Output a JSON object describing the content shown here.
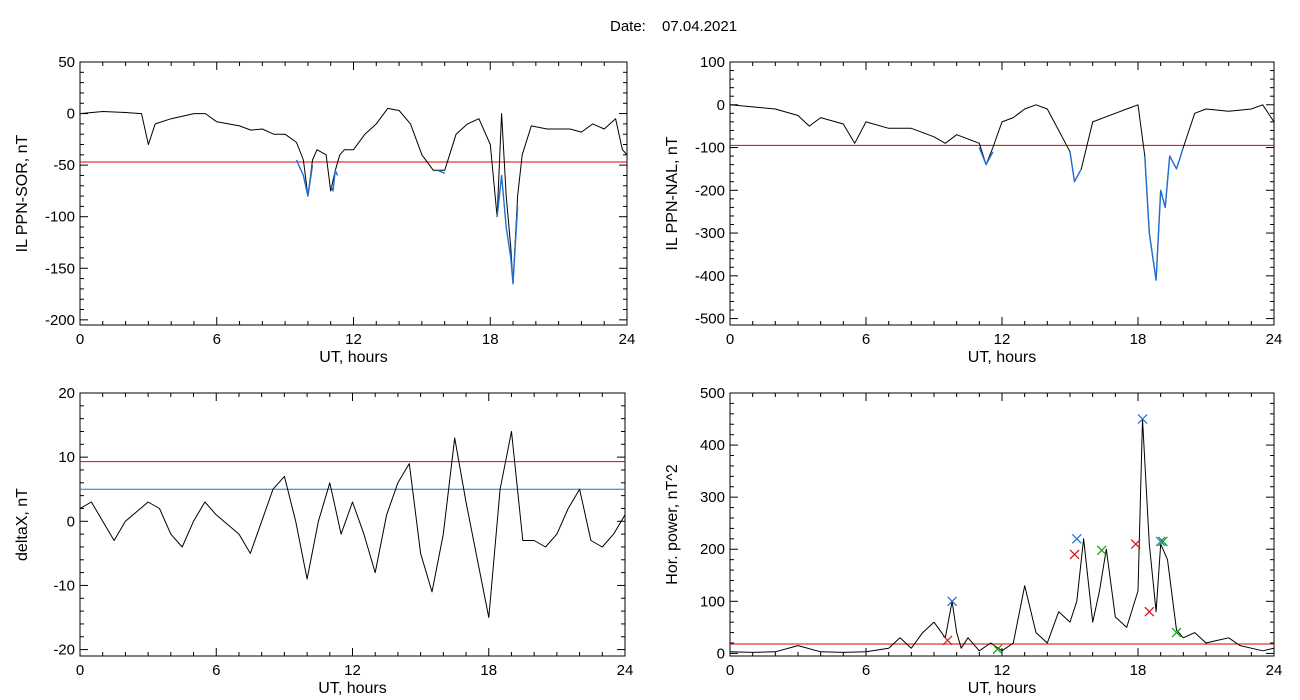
{
  "header": {
    "date_label": "Date:",
    "date_value": "07.04.2021"
  },
  "colors": {
    "trace": "#000000",
    "threshold_red": "#e00000",
    "threshold_blue": "#1f6fd0",
    "marker_red": "#d01010",
    "marker_blue": "#1f6fd0",
    "marker_green": "#10a010"
  },
  "chart_data": [
    {
      "type": "line",
      "ylabel": "IL PPN-SOR, nT",
      "xlabel": "UT, hours",
      "xlim": [
        0,
        24
      ],
      "ylim": [
        -205,
        50
      ],
      "xticks": [
        0,
        6,
        12,
        18,
        24
      ],
      "yticks": [
        50,
        0,
        -50,
        -100,
        -150,
        -200
      ],
      "grid": false,
      "series": [
        {
          "color": "black",
          "x": [
            0,
            1,
            2,
            2.7,
            3.0,
            3.3,
            4,
            5,
            5.5,
            6,
            7,
            7.5,
            8,
            8.5,
            9,
            9.5,
            9.8,
            10.0,
            10.2,
            10.4,
            10.8,
            11.0,
            11.2,
            11.4,
            11.6,
            12,
            12.5,
            13,
            13.5,
            14,
            14.5,
            15,
            15.5,
            16,
            16.5,
            17,
            17.5,
            18,
            18.3,
            18.5,
            18.7,
            18.9,
            19.0,
            19.2,
            19.4,
            19.8,
            20.5,
            21,
            21.5,
            22,
            22.5,
            23,
            23.5,
            23.8,
            24
          ],
          "y": [
            0,
            2,
            1,
            0,
            -30,
            -10,
            -5,
            0,
            0,
            -8,
            -12,
            -16,
            -15,
            -20,
            -20,
            -28,
            -45,
            -80,
            -45,
            -35,
            -40,
            -75,
            -55,
            -40,
            -35,
            -35,
            -20,
            -10,
            5,
            3,
            -10,
            -40,
            -55,
            -55,
            -20,
            -10,
            -5,
            -30,
            -100,
            0,
            -80,
            -130,
            -165,
            -80,
            -40,
            -12,
            -15,
            -15,
            -15,
            -18,
            -10,
            -15,
            -5,
            -35,
            -40
          ]
        },
        {
          "color": "blue",
          "x": [
            9.5,
            9.8,
            10.0,
            10.2
          ],
          "y": [
            -45,
            -60,
            -80,
            -50
          ]
        },
        {
          "color": "blue",
          "x": [
            11.0,
            11.1,
            11.2,
            11.3
          ],
          "y": [
            -70,
            -75,
            -55,
            -60
          ]
        },
        {
          "color": "blue",
          "x": [
            15.7,
            16.0
          ],
          "y": [
            -55,
            -58
          ]
        },
        {
          "color": "blue",
          "x": [
            18.3,
            18.5,
            18.7,
            18.9,
            19.0,
            19.2
          ],
          "y": [
            -100,
            -60,
            -110,
            -140,
            -165,
            -90
          ]
        }
      ],
      "hlines": [
        {
          "y": -47,
          "color": "red"
        }
      ]
    },
    {
      "type": "line",
      "ylabel": "IL PPN-NAL, nT",
      "xlabel": "UT, hours",
      "xlim": [
        0,
        24
      ],
      "ylim": [
        -515,
        100
      ],
      "xticks": [
        0,
        6,
        12,
        18,
        24
      ],
      "yticks": [
        100,
        0,
        -100,
        -200,
        -300,
        -400,
        -500
      ],
      "grid": false,
      "series": [
        {
          "color": "black",
          "x": [
            0,
            1,
            2,
            3,
            3.5,
            4,
            5,
            5.5,
            6,
            7,
            8,
            9,
            9.5,
            10,
            11,
            11.3,
            11.6,
            12,
            12.5,
            13,
            13.5,
            14,
            14.5,
            15,
            15.2,
            15.5,
            16,
            17,
            17.5,
            18,
            18.3,
            18.5,
            18.8,
            19.0,
            19.2,
            19.4,
            19.7,
            20.0,
            20.5,
            21,
            22,
            23,
            23.5,
            24
          ],
          "y": [
            0,
            -5,
            -10,
            -25,
            -50,
            -30,
            -45,
            -90,
            -40,
            -55,
            -55,
            -75,
            -90,
            -70,
            -90,
            -140,
            -100,
            -40,
            -30,
            -10,
            0,
            -10,
            -60,
            -110,
            -180,
            -150,
            -40,
            -20,
            -10,
            0,
            -120,
            -300,
            -410,
            -200,
            -240,
            -120,
            -150,
            -100,
            -20,
            -10,
            -15,
            -10,
            0,
            -40
          ]
        },
        {
          "color": "blue",
          "x": [
            11.0,
            11.3,
            11.6
          ],
          "y": [
            -100,
            -140,
            -110
          ]
        },
        {
          "color": "blue",
          "x": [
            15.0,
            15.2,
            15.5
          ],
          "y": [
            -110,
            -180,
            -150
          ]
        },
        {
          "color": "blue",
          "x": [
            18.3,
            18.5,
            18.8,
            19.0,
            19.2,
            19.4,
            19.7,
            20.0
          ],
          "y": [
            -120,
            -300,
            -410,
            -200,
            -240,
            -120,
            -150,
            -100
          ]
        }
      ],
      "hlines": [
        {
          "y": -95,
          "color": "red"
        }
      ]
    },
    {
      "type": "line",
      "ylabel": "deltaX, nT",
      "xlabel": "UT, hours",
      "xlim": [
        0,
        24
      ],
      "ylim": [
        -21,
        20
      ],
      "xticks": [
        0,
        6,
        12,
        18,
        24
      ],
      "yticks": [
        20,
        10,
        0,
        -10,
        -20
      ],
      "grid": false,
      "series": [
        {
          "color": "black",
          "x": [
            0,
            0.5,
            1,
            1.5,
            2,
            3,
            3.5,
            4,
            4.5,
            5,
            5.5,
            6,
            7,
            7.5,
            8,
            8.5,
            9,
            9.5,
            10,
            10.5,
            11,
            11.5,
            12,
            12.5,
            13,
            13.5,
            14,
            14.5,
            15,
            15.5,
            16,
            16.5,
            17,
            17.5,
            18,
            18.5,
            19,
            19.5,
            20,
            20.5,
            21,
            21.5,
            22,
            22.5,
            23,
            23.5,
            24
          ],
          "y": [
            2,
            3,
            0,
            -3,
            0,
            3,
            2,
            -2,
            -4,
            0,
            3,
            1,
            -2,
            -5,
            0,
            5,
            7,
            0,
            -9,
            0,
            6,
            -2,
            3,
            -2,
            -8,
            1,
            6,
            9,
            -5,
            -11,
            -2,
            13,
            3,
            -6,
            -15,
            5,
            14,
            -3,
            -3,
            -4,
            -2,
            2,
            5,
            -3,
            -4,
            -2,
            1
          ]
        }
      ],
      "hlines": [
        {
          "y": 9.3,
          "color": "red"
        },
        {
          "y": 5,
          "color": "blue"
        }
      ]
    },
    {
      "type": "line",
      "ylabel": "Hor. power, nT^2",
      "xlabel": "UT, hours",
      "xlim": [
        0,
        24
      ],
      "ylim": [
        -5,
        500
      ],
      "xticks": [
        0,
        6,
        12,
        18,
        24
      ],
      "yticks": [
        500,
        400,
        300,
        200,
        100,
        0
      ],
      "grid": false,
      "series": [
        {
          "color": "black",
          "x": [
            0,
            1,
            2,
            3,
            4,
            5,
            6,
            7,
            7.5,
            8,
            8.5,
            9,
            9.5,
            9.8,
            10,
            10.2,
            10.5,
            11,
            11.5,
            12,
            12.5,
            13,
            13.5,
            14,
            14.5,
            15,
            15.3,
            15.6,
            16,
            16.3,
            16.6,
            17,
            17.5,
            18,
            18.2,
            18.5,
            18.8,
            19,
            19.3,
            19.7,
            20,
            20.5,
            21,
            21.5,
            22,
            22.5,
            23,
            23.5,
            24
          ],
          "y": [
            3,
            2,
            3,
            15,
            3,
            2,
            3,
            10,
            30,
            10,
            40,
            60,
            30,
            100,
            40,
            10,
            30,
            5,
            20,
            5,
            20,
            130,
            40,
            20,
            80,
            60,
            100,
            220,
            60,
            120,
            200,
            70,
            50,
            120,
            450,
            210,
            80,
            210,
            180,
            45,
            30,
            40,
            20,
            25,
            30,
            15,
            10,
            5,
            10
          ]
        }
      ],
      "hlines": [
        {
          "y": 18,
          "color": "red"
        }
      ],
      "markers": [
        {
          "x": 9.8,
          "y": 100,
          "color": "blue"
        },
        {
          "x": 15.3,
          "y": 220,
          "color": "blue"
        },
        {
          "x": 18.2,
          "y": 450,
          "color": "blue"
        },
        {
          "x": 19.0,
          "y": 215,
          "color": "blue"
        },
        {
          "x": 9.6,
          "y": 25,
          "color": "red"
        },
        {
          "x": 15.2,
          "y": 190,
          "color": "red"
        },
        {
          "x": 17.9,
          "y": 210,
          "color": "red"
        },
        {
          "x": 18.5,
          "y": 80,
          "color": "red"
        },
        {
          "x": 16.4,
          "y": 198,
          "color": "green"
        },
        {
          "x": 19.1,
          "y": 215,
          "color": "green"
        },
        {
          "x": 11.8,
          "y": 8,
          "color": "green"
        },
        {
          "x": 19.7,
          "y": 40,
          "color": "green"
        }
      ]
    }
  ]
}
